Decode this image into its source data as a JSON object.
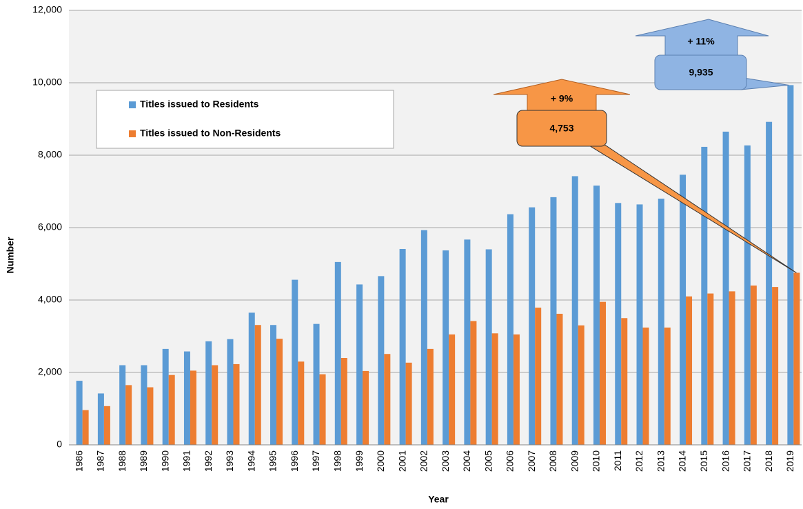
{
  "chart_data": {
    "type": "bar",
    "xlabel": "Year",
    "ylabel": "Number",
    "categories": [
      "1986",
      "1987",
      "1988",
      "1989",
      "1990",
      "1991",
      "1992",
      "1993",
      "1994",
      "1995",
      "1996",
      "1997",
      "1998",
      "1999",
      "2000",
      "2001",
      "2002",
      "2003",
      "2004",
      "2005",
      "2006",
      "2007",
      "2008",
      "2009",
      "2010",
      "2011",
      "2012",
      "2013",
      "2014",
      "2015",
      "2016",
      "2017",
      "2018",
      "2019"
    ],
    "series": [
      {
        "name": "Titles issued to Residents",
        "color": "#5b9bd5",
        "values": [
          1770,
          1420,
          2200,
          2200,
          2650,
          2580,
          2860,
          2920,
          3650,
          3310,
          4560,
          3340,
          5050,
          4430,
          4660,
          5410,
          5930,
          5370,
          5670,
          5400,
          6370,
          6560,
          6840,
          7420,
          7160,
          6680,
          6640,
          6800,
          7460,
          8230,
          8650,
          8270,
          8920,
          9935
        ]
      },
      {
        "name": "Titles issued to Non-Residents",
        "color": "#ed7d31",
        "values": [
          960,
          1070,
          1650,
          1590,
          1930,
          2050,
          2200,
          2230,
          3310,
          2930,
          2300,
          1950,
          2400,
          2040,
          2510,
          2270,
          2650,
          3050,
          3420,
          3080,
          3050,
          3790,
          3620,
          3300,
          3950,
          3500,
          3240,
          3240,
          4100,
          4180,
          4240,
          4400,
          4360,
          4753
        ]
      }
    ],
    "ylim": [
      0,
      12000
    ],
    "yticks": [
      0,
      {
        "value": 2000,
        "label": "2,000"
      },
      {
        "value": 4000,
        "label": "4,000"
      },
      {
        "value": 6000,
        "label": "6,000"
      },
      {
        "value": 8000,
        "label": "8,000"
      },
      {
        "value": 10000,
        "label": "10,000"
      },
      {
        "value": 12000,
        "label": "12,000"
      }
    ],
    "grid": true,
    "legend": "upper left",
    "annotations": [
      {
        "text": "+ 11%"
      },
      {
        "text": "9,935"
      },
      {
        "text": "+ 9%"
      },
      {
        "text": "4,753"
      }
    ]
  }
}
